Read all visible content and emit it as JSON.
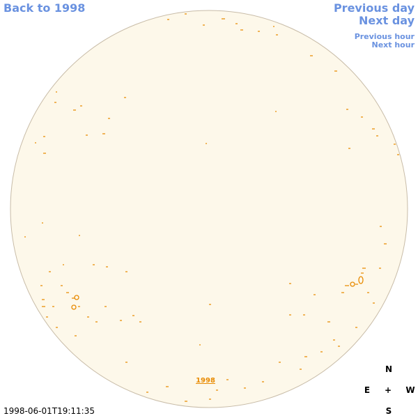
{
  "navigation": {
    "back": "Back to 1998",
    "previous_day": "Previous day",
    "next_day": "Next day",
    "previous_hour": "Previous hour",
    "next_hour": "Next hour"
  },
  "image": {
    "year_link": "1998",
    "timestamp": "1998-06-01T19:11:35"
  },
  "compass": {
    "north": "N",
    "east": "E",
    "center": "+",
    "west": "W",
    "south": "S"
  }
}
